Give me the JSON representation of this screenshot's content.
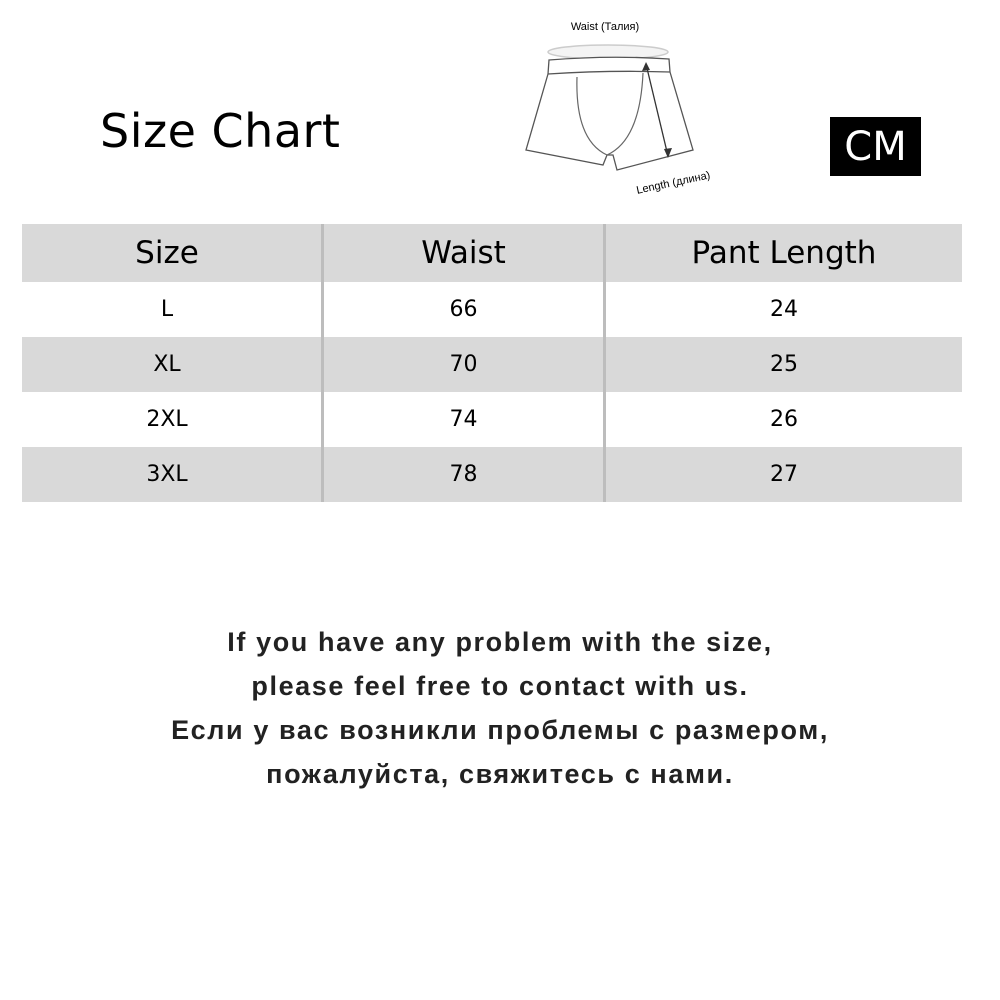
{
  "title": "Size Chart",
  "unit_badge": "CM",
  "diagram": {
    "waist_label": "Waist (Талия)",
    "length_label": "Length (длина)"
  },
  "table": {
    "headers": [
      "Size",
      "Waist",
      "Pant Length"
    ],
    "rows": [
      [
        "L",
        "66",
        "24"
      ],
      [
        "XL",
        "70",
        "25"
      ],
      [
        "2XL",
        "74",
        "26"
      ],
      [
        "3XL",
        "78",
        "27"
      ]
    ],
    "stripe_color": "#d9d9d9"
  },
  "note": {
    "lines": [
      "If you have any problem with the size,",
      "please feel free to contact with us.",
      "Если у вас возникли проблемы с размером,",
      "пожалуйста, свяжитесь с нами."
    ]
  }
}
